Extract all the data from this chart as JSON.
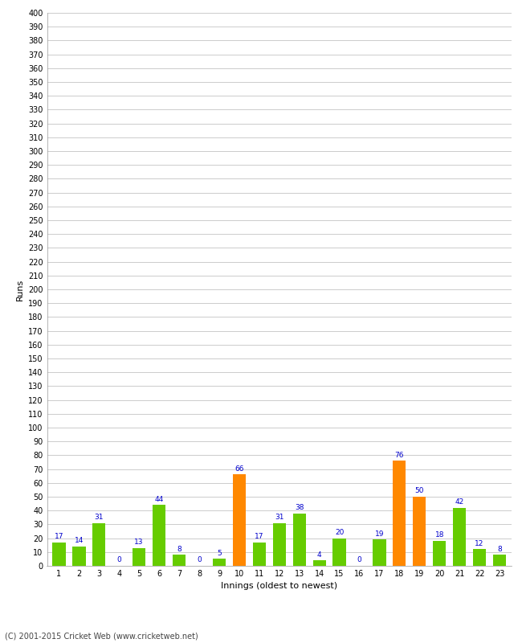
{
  "innings": [
    1,
    2,
    3,
    4,
    5,
    6,
    7,
    8,
    9,
    10,
    11,
    12,
    13,
    14,
    15,
    16,
    17,
    18,
    19,
    20,
    21,
    22,
    23
  ],
  "runs": [
    17,
    14,
    31,
    0,
    13,
    44,
    8,
    0,
    5,
    66,
    17,
    31,
    38,
    4,
    20,
    0,
    19,
    76,
    50,
    18,
    42,
    12,
    8
  ],
  "colors": [
    "#66cc00",
    "#66cc00",
    "#66cc00",
    "#66cc00",
    "#66cc00",
    "#66cc00",
    "#66cc00",
    "#66cc00",
    "#66cc00",
    "#ff8800",
    "#66cc00",
    "#66cc00",
    "#66cc00",
    "#66cc00",
    "#66cc00",
    "#66cc00",
    "#66cc00",
    "#ff8800",
    "#ff8800",
    "#66cc00",
    "#66cc00",
    "#66cc00",
    "#66cc00"
  ],
  "xlabel": "Innings (oldest to newest)",
  "ylabel": "Runs",
  "ylim": [
    0,
    400
  ],
  "ytick_step": 10,
  "label_color": "#0000cc",
  "label_fontsize": 6.5,
  "axis_label_fontsize": 8,
  "tick_fontsize": 7,
  "background_color": "#ffffff",
  "grid_color": "#cccccc",
  "footer": "(C) 2001-2015 Cricket Web (www.cricketweb.net)",
  "footer_fontsize": 7
}
